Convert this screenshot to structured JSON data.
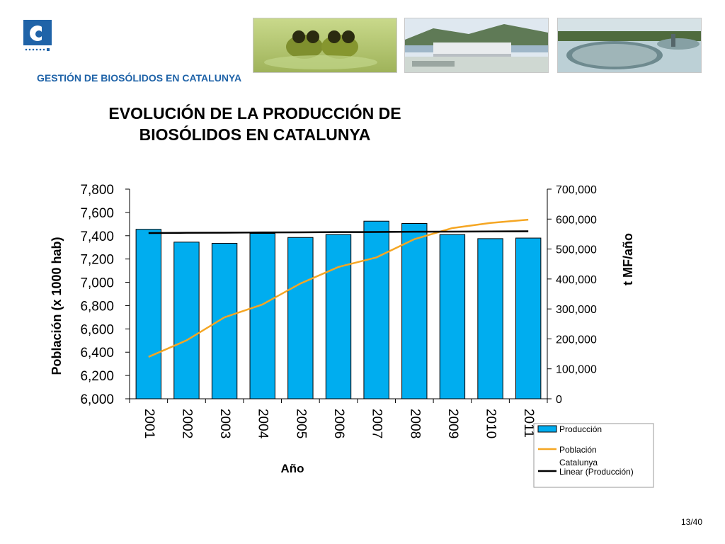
{
  "header": {
    "section_title": "GESTIÓN DE BIOSÓLIDOS EN CATALUNYA",
    "images": [
      "frogs-photo",
      "dam-photo",
      "wastewater-plant-photo"
    ]
  },
  "slide": {
    "title_line1": "EVOLUCIÓN DE LA PRODUCCIÓN DE",
    "title_line2": "BIOSÓLIDOS EN CATALUNYA",
    "page_number": "13/40"
  },
  "chart_data": {
    "type": "bar",
    "xlabel": "Año",
    "ylabel": "Población (x 1000 hab)",
    "y2label": "t MF/año",
    "categories": [
      "2001",
      "2002",
      "2003",
      "2004",
      "2005",
      "2006",
      "2007",
      "2008",
      "2009",
      "2010",
      "2011"
    ],
    "ylim": [
      6000,
      7800
    ],
    "yticks": [
      "6,000",
      "6,200",
      "6,400",
      "6,600",
      "6,800",
      "7,000",
      "7,200",
      "7,400",
      "7,600",
      "7,800"
    ],
    "y2lim": [
      0,
      700000
    ],
    "y2ticks": [
      "0",
      "100,000",
      "200,000",
      "300,000",
      "400,000",
      "500,000",
      "600,000",
      "700,000"
    ],
    "legend_position": "bottom-right",
    "series": [
      {
        "name": "Producción",
        "type": "bar",
        "axis": "left",
        "color": "#00adef",
        "values": [
          7455,
          7345,
          7335,
          7420,
          7385,
          7410,
          7525,
          7505,
          7410,
          7375,
          7380
        ]
      },
      {
        "name": "Población Catalunya",
        "type": "line",
        "axis": "right",
        "color": "#f5a623",
        "values": [
          140000,
          195000,
          272000,
          315000,
          385000,
          440000,
          472000,
          533000,
          570000,
          587000,
          598000
        ]
      },
      {
        "name": "Linear (Producción)",
        "type": "line",
        "axis": "left",
        "color": "#000000",
        "values": [
          7423,
          7425,
          7426,
          7428,
          7429,
          7431,
          7432,
          7434,
          7435,
          7437,
          7438
        ]
      }
    ]
  }
}
